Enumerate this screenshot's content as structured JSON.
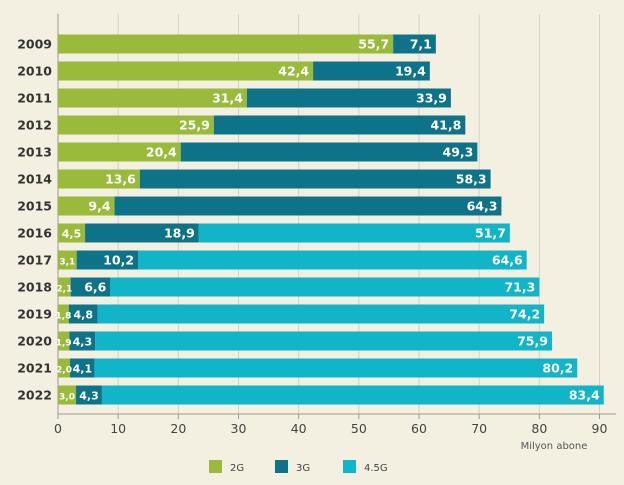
{
  "chart_data": {
    "type": "bar",
    "orientation": "horizontal",
    "stacked": true,
    "categories": [
      "2009",
      "2010",
      "2011",
      "2012",
      "2013",
      "2014",
      "2015",
      "2016",
      "2017",
      "2018",
      "2019",
      "2020",
      "2021",
      "2022"
    ],
    "series": [
      {
        "name": "2G",
        "color": "#9aba3b",
        "values": [
          55.7,
          42.4,
          31.4,
          25.9,
          20.4,
          13.6,
          9.4,
          4.5,
          3.1,
          2.1,
          1.8,
          1.9,
          2.0,
          3.0
        ],
        "labels": [
          "55,7",
          "42,4",
          "31,4",
          "25,9",
          "20,4",
          "13,6",
          "9,4",
          "4,5",
          "3,1",
          "2,1",
          "1,8",
          "1,9",
          "2,0",
          "3,0"
        ]
      },
      {
        "name": "3G",
        "color": "#0e7389",
        "values": [
          7.1,
          19.4,
          33.9,
          41.8,
          49.3,
          58.3,
          64.3,
          18.9,
          10.2,
          6.6,
          4.8,
          4.3,
          4.1,
          4.3
        ],
        "labels": [
          "7,1",
          "19,4",
          "33,9",
          "41,8",
          "49,3",
          "58,3",
          "64,3",
          "18,9",
          "10,2",
          "6,6",
          "4,8",
          "4,3",
          "4,1",
          "4,3"
        ]
      },
      {
        "name": "4.5G",
        "color": "#12b4c8",
        "values": [
          0,
          0,
          0,
          0,
          0,
          0,
          0,
          51.7,
          64.6,
          71.3,
          74.2,
          75.9,
          80.2,
          83.4
        ],
        "labels": [
          "",
          "",
          "",
          "",
          "",
          "",
          "",
          "51,7",
          "64,6",
          "71,3",
          "74,2",
          "75,9",
          "80,2",
          "83,4"
        ]
      }
    ],
    "xlabel": "Milyon abone",
    "xlim": [
      0,
      90
    ],
    "xticks": [
      0,
      10,
      20,
      30,
      40,
      50,
      60,
      70,
      80,
      90
    ],
    "grid": true,
    "legend": "bottom"
  }
}
